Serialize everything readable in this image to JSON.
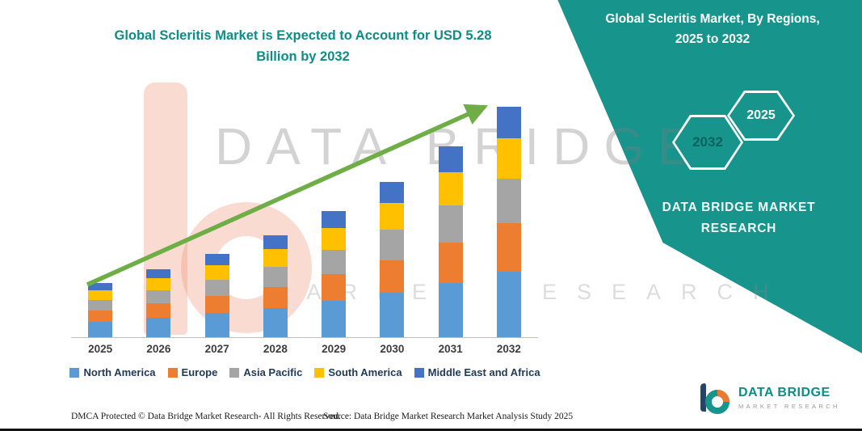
{
  "colors": {
    "panel_teal": "#17948C",
    "title_teal": "#0E8C86",
    "arrow_green": "#6FAE46"
  },
  "title": {
    "line1": "Global Scleritis Market is Expected to Account for USD 5.28",
    "line2": "Billion by 2032"
  },
  "right_panel": {
    "heading_line1": "Global Scleritis Market, By Regions,",
    "heading_line2": "2025 to 2032",
    "hexagon_back_year": "2032",
    "hexagon_front_year": "2025",
    "brand_line1": "DATA BRIDGE MARKET",
    "brand_line2": "RESEARCH"
  },
  "watermark": {
    "line1": "DATA BRIDGE",
    "line2": "MARKET RESEARCH"
  },
  "chart_data": {
    "type": "bar",
    "stacked": true,
    "title": "Global Scleritis Market is Expected to Account for USD 5.28 Billion by 2032",
    "categories": [
      "2025",
      "2026",
      "2027",
      "2028",
      "2029",
      "2030",
      "2031",
      "2032"
    ],
    "unit": "USD Billion",
    "series": [
      {
        "name": "North America",
        "color": "#5B9BD5",
        "values": [
          0.36,
          0.45,
          0.55,
          0.67,
          0.83,
          1.02,
          1.25,
          1.5
        ]
      },
      {
        "name": "Europe",
        "color": "#ED7D31",
        "values": [
          0.26,
          0.33,
          0.4,
          0.49,
          0.61,
          0.75,
          0.92,
          1.11
        ]
      },
      {
        "name": "Asia Pacific",
        "color": "#A5A5A5",
        "values": [
          0.24,
          0.3,
          0.37,
          0.45,
          0.56,
          0.69,
          0.85,
          1.02
        ]
      },
      {
        "name": "South America",
        "color": "#FFC000",
        "values": [
          0.22,
          0.27,
          0.33,
          0.41,
          0.51,
          0.62,
          0.77,
          0.93
        ]
      },
      {
        "name": "Middle East and Africa",
        "color": "#4472C4",
        "values": [
          0.17,
          0.21,
          0.26,
          0.32,
          0.39,
          0.48,
          0.59,
          0.72
        ]
      }
    ],
    "xlabel": "",
    "ylabel": "",
    "ylim": [
      0,
      5.6
    ],
    "grid": false,
    "legend_position": "bottom",
    "annotations": [
      "green upward trend arrow across bars"
    ]
  },
  "footer": {
    "left": "DMCA Protected © Data Bridge Market Research-  All Rights Reserved.",
    "source": "Source: Data Bridge Market Research  Market Analysis Study 2025"
  },
  "logo": {
    "name": "DATA BRIDGE",
    "subtitle": "MARKET RESEARCH"
  }
}
